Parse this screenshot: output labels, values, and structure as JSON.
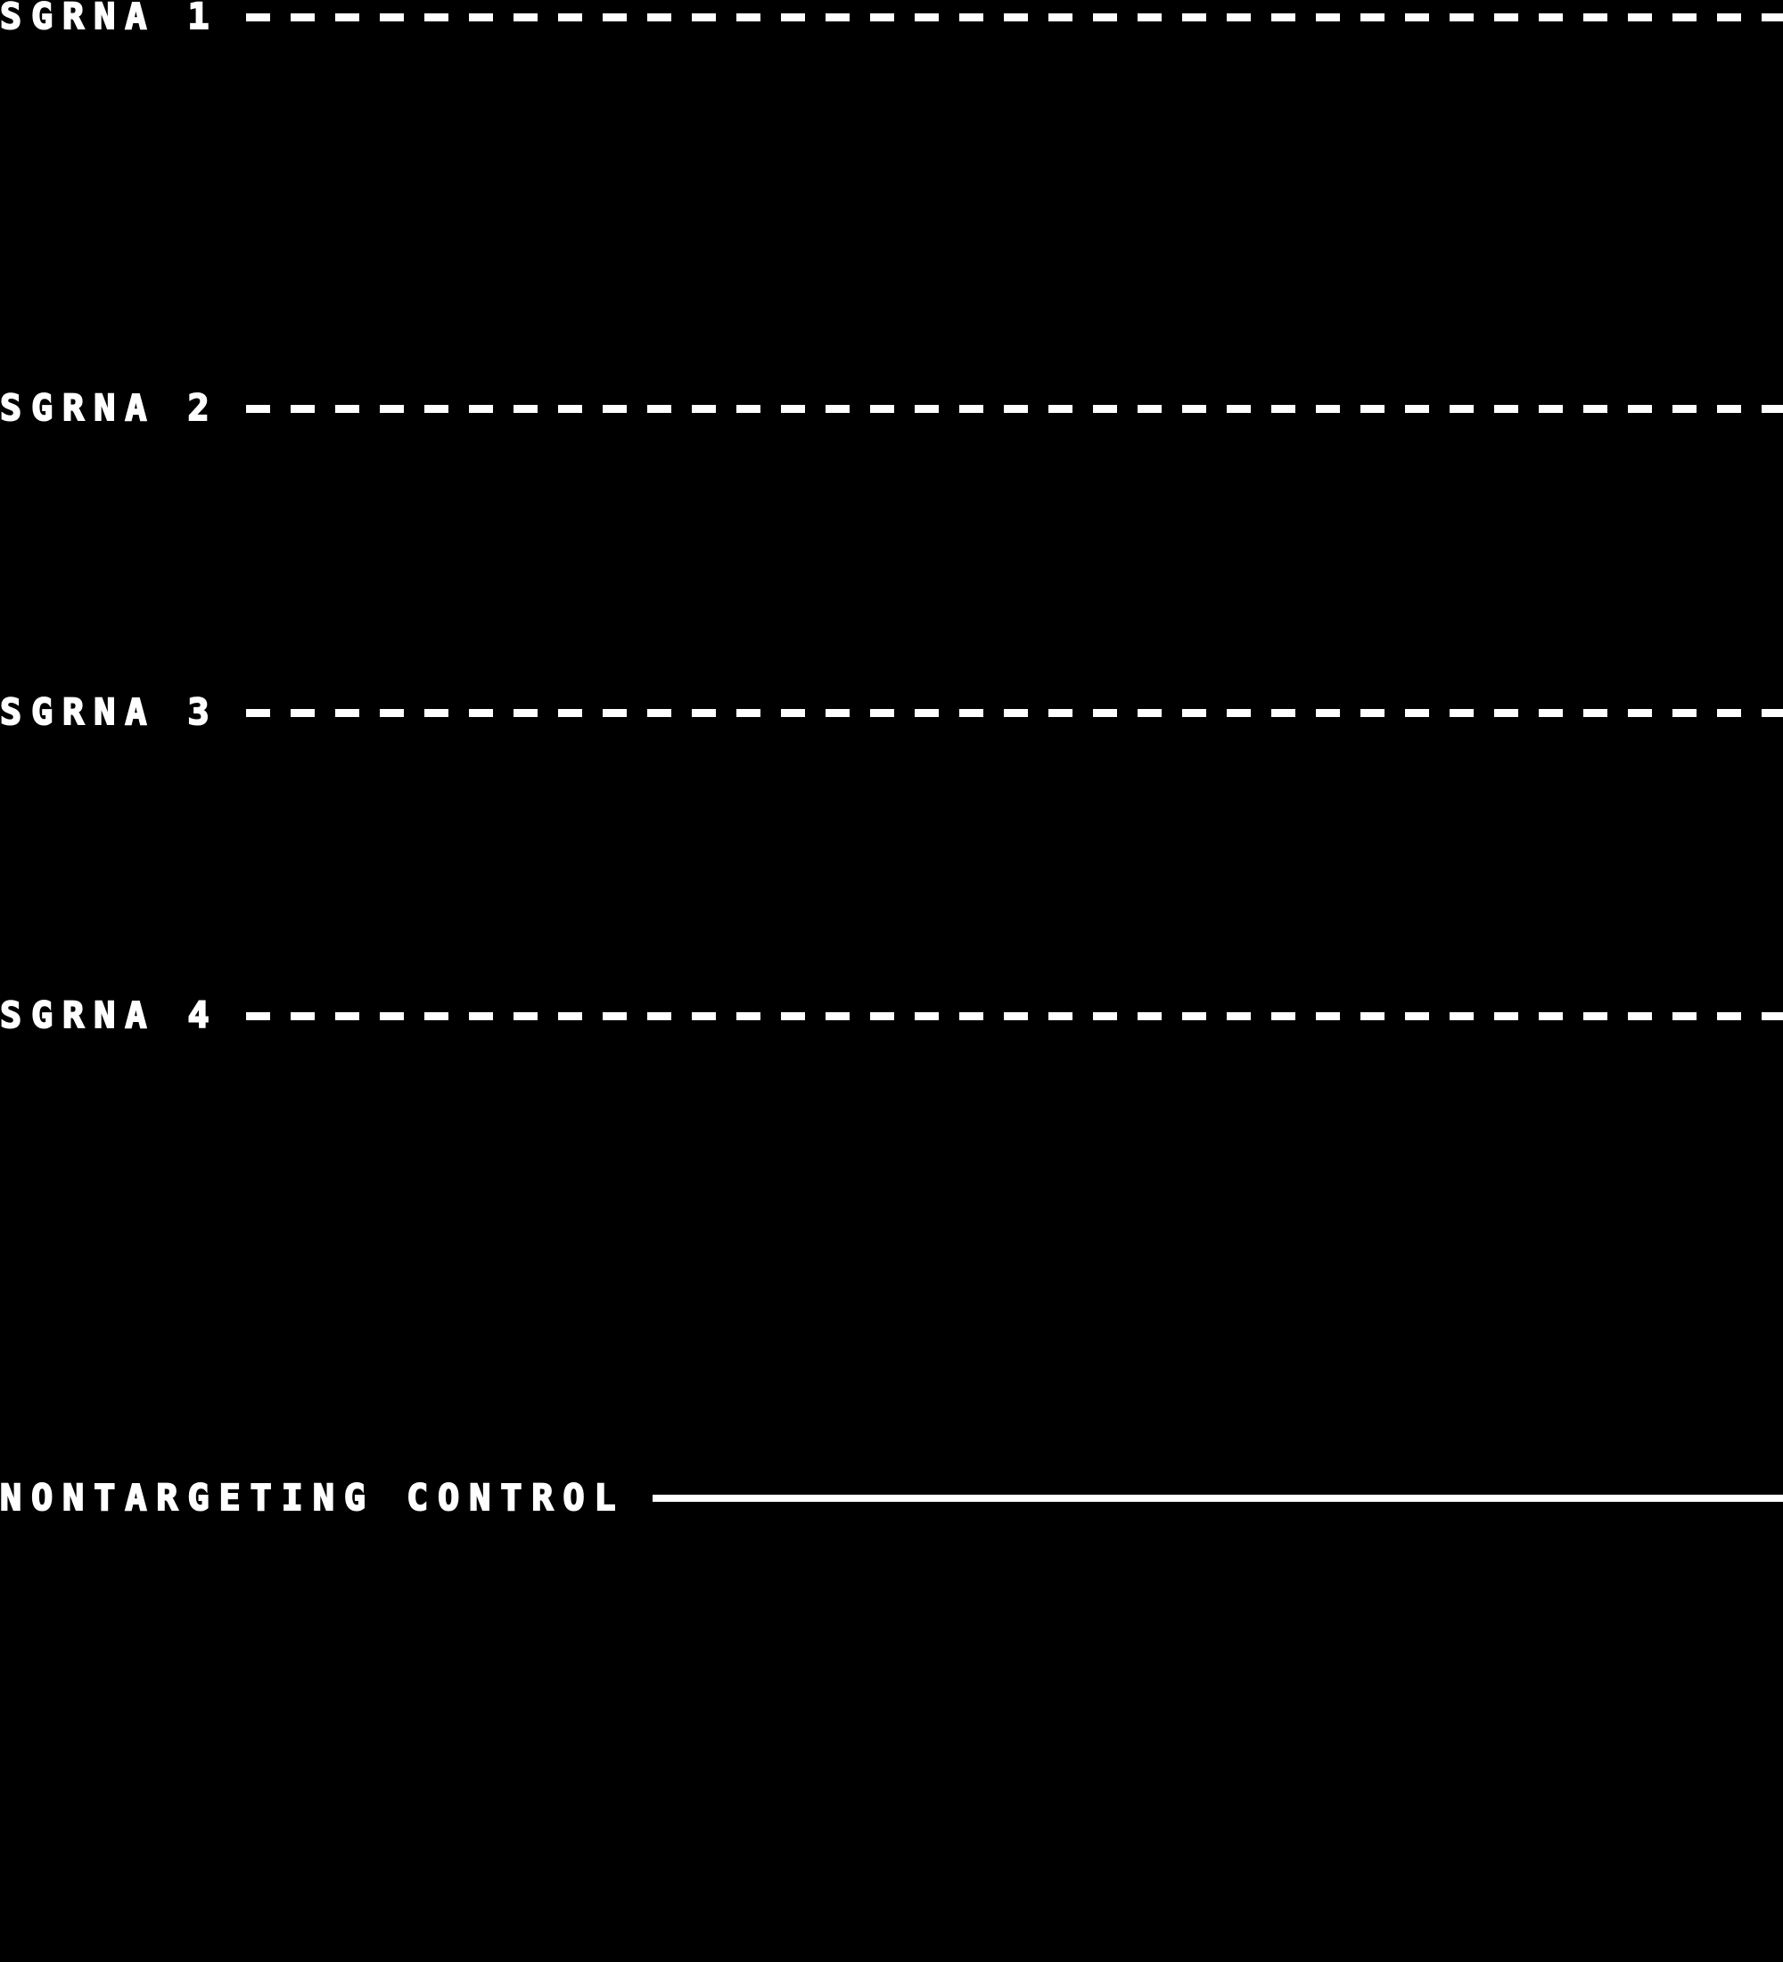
{
  "colors": {
    "background": "#000000",
    "foreground": "#ffffff"
  },
  "legend": {
    "entries": [
      {
        "label": "SGRNA 1",
        "line_style": "dashed"
      },
      {
        "label": "SGRNA 2",
        "line_style": "dashed"
      },
      {
        "label": "SGRNA 3",
        "line_style": "dashed"
      },
      {
        "label": "SGRNA 4",
        "line_style": "dashed"
      },
      {
        "label": "NONTARGETING CONTROL",
        "line_style": "solid"
      }
    ]
  },
  "chart_data": {
    "type": "line",
    "title": "",
    "xlabel": "",
    "ylabel": "",
    "legend_position": "full-image",
    "series": [
      {
        "name": "SGRNA 1",
        "line_style": "dashed",
        "color": "#ffffff"
      },
      {
        "name": "SGRNA 2",
        "line_style": "dashed",
        "color": "#ffffff"
      },
      {
        "name": "SGRNA 3",
        "line_style": "dashed",
        "color": "#ffffff"
      },
      {
        "name": "SGRNA 4",
        "line_style": "dashed",
        "color": "#ffffff"
      },
      {
        "name": "NONTARGETING CONTROL",
        "line_style": "solid",
        "color": "#ffffff"
      }
    ]
  }
}
